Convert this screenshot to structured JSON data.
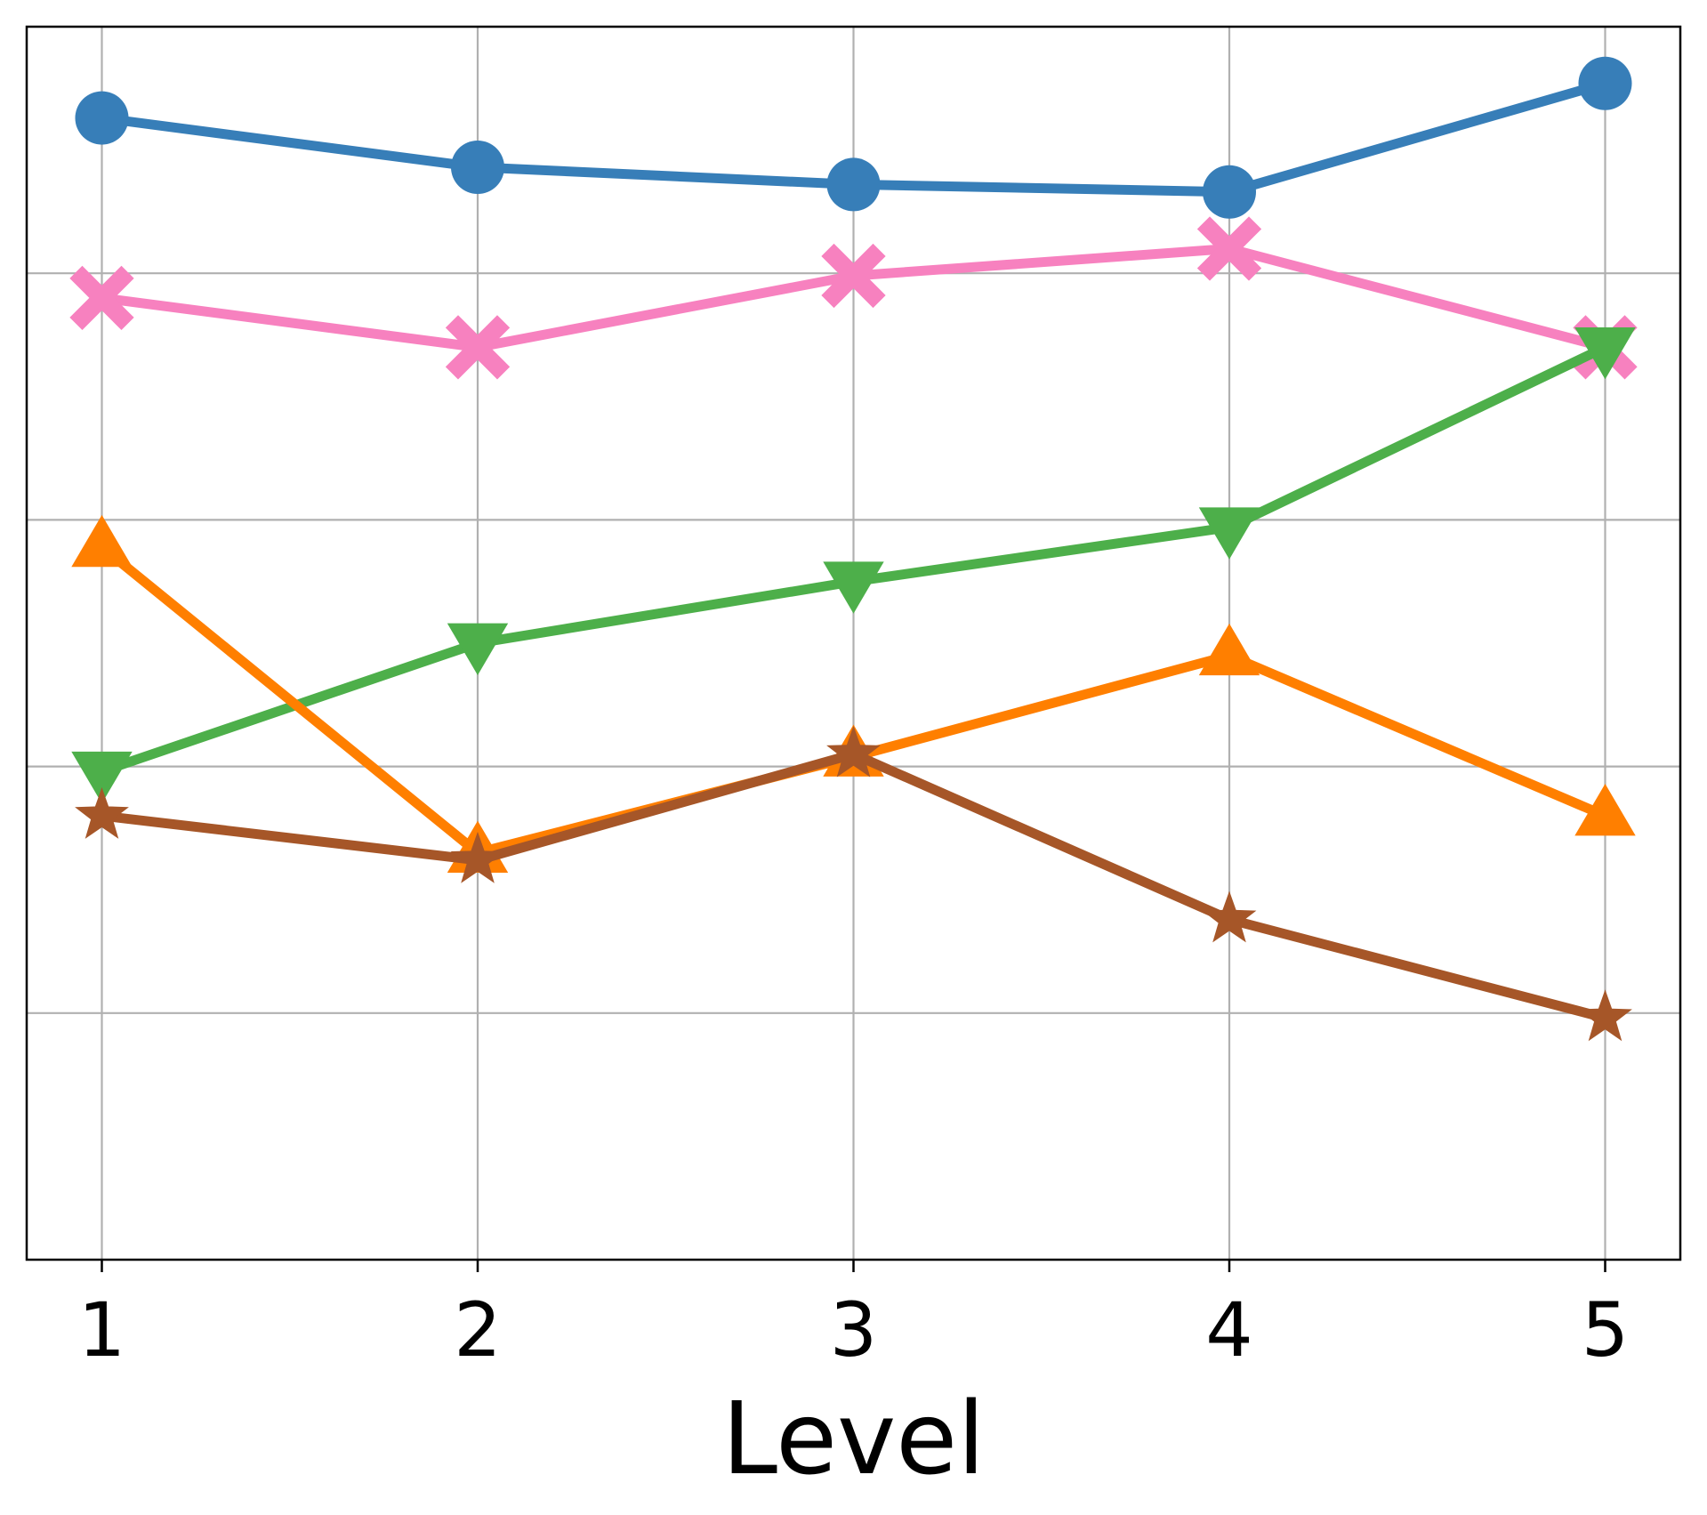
{
  "chart_data": {
    "type": "line",
    "title": "",
    "xlabel": "Level",
    "ylabel": "",
    "x": [
      1,
      2,
      3,
      4,
      5
    ],
    "xlim": [
      0.8,
      5.2
    ],
    "ylim": [
      0,
      5
    ],
    "y_gridlines": [
      1,
      2,
      3,
      4
    ],
    "grid": true,
    "legend": "none",
    "series": [
      {
        "color": "#377eb8",
        "marker": "circle",
        "values": [
          4.63,
          4.43,
          4.36,
          4.33,
          4.77
        ]
      },
      {
        "color": "#f781bf",
        "marker": "x",
        "values": [
          3.9,
          3.7,
          3.99,
          4.1,
          3.7
        ]
      },
      {
        "color": "#4daf4a",
        "marker": "triangle-down",
        "values": [
          1.98,
          2.5,
          2.75,
          2.97,
          3.7
        ]
      },
      {
        "color": "#ff7f00",
        "marker": "triangle-up",
        "values": [
          2.89,
          1.65,
          2.04,
          2.45,
          1.8
        ]
      },
      {
        "color": "#a65628",
        "marker": "star",
        "values": [
          1.8,
          1.62,
          2.05,
          1.38,
          0.98
        ]
      }
    ]
  }
}
